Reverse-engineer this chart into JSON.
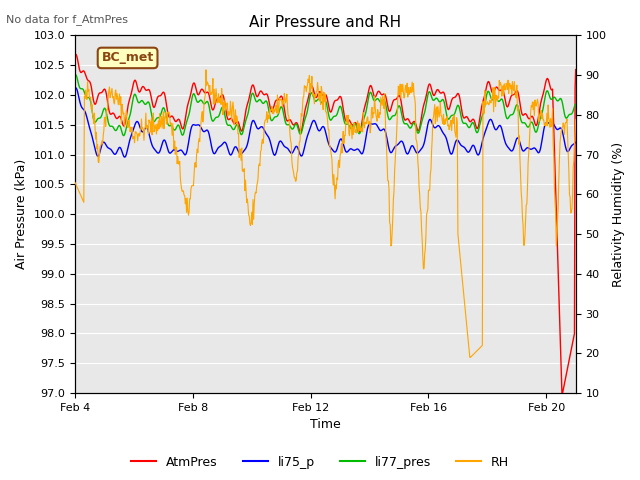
{
  "title": "Air Pressure and RH",
  "top_left_text": "No data for f_AtmPres",
  "station_label": "BC_met",
  "xlabel": "Time",
  "ylabel_left": "Air Pressure (kPa)",
  "ylabel_right": "Relativity Humidity (%)",
  "ylim_left": [
    97.0,
    103.0
  ],
  "ylim_right": [
    10,
    100
  ],
  "yticks_left": [
    97.0,
    97.5,
    98.0,
    98.5,
    99.0,
    99.5,
    100.0,
    100.5,
    101.0,
    101.5,
    102.0,
    102.5,
    103.0
  ],
  "yticks_right": [
    10,
    20,
    30,
    40,
    50,
    60,
    70,
    80,
    90,
    100
  ],
  "xtick_labels": [
    "Feb 4",
    "Feb 8",
    "Feb 12",
    "Feb 16",
    "Feb 20"
  ],
  "xtick_positions": [
    0,
    4,
    8,
    12,
    16
  ],
  "xlim": [
    0,
    17
  ],
  "colors": {
    "atmpres": "#FF0000",
    "li75_p": "#0000FF",
    "li77_pres": "#00BB00",
    "rh": "#FFA500",
    "fig_bg": "#FFFFFF",
    "plot_bg": "#E8E8E8",
    "grid": "#FFFFFF"
  },
  "legend_labels": [
    "AtmPres",
    "li75_p",
    "li77_pres",
    "RH"
  ],
  "legend_colors": [
    "#FF0000",
    "#0000FF",
    "#00BB00",
    "#FFA500"
  ]
}
